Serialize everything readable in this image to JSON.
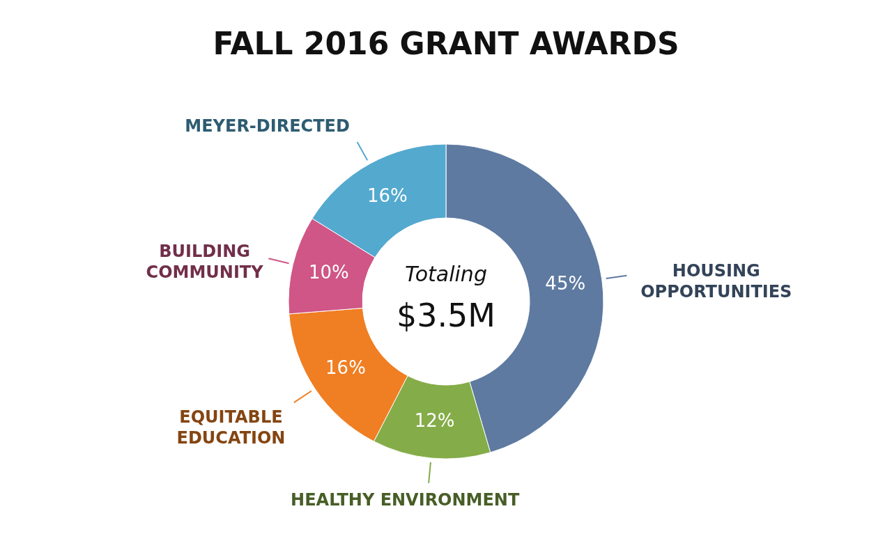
{
  "chart_data": {
    "type": "donut",
    "title": "FALL 2016 GRANT AWARDS",
    "categories": [
      "HOUSING OPPORTUNITIES",
      "HEALTHY ENVIRONMENT",
      "EQUITABLE EDUCATION",
      "BUILDING COMMUNITY",
      "MEYER-DIRECTED"
    ],
    "values": [
      45,
      12,
      16,
      10,
      16
    ],
    "colors": [
      "#5e7aa1",
      "#84ac48",
      "#f07e22",
      "#cf5686",
      "#54a9cf"
    ],
    "value_labels": [
      "45%",
      "12%",
      "16%",
      "10%",
      "16%"
    ],
    "annotations": [
      "Totaling",
      "$3.5M"
    ]
  }
}
